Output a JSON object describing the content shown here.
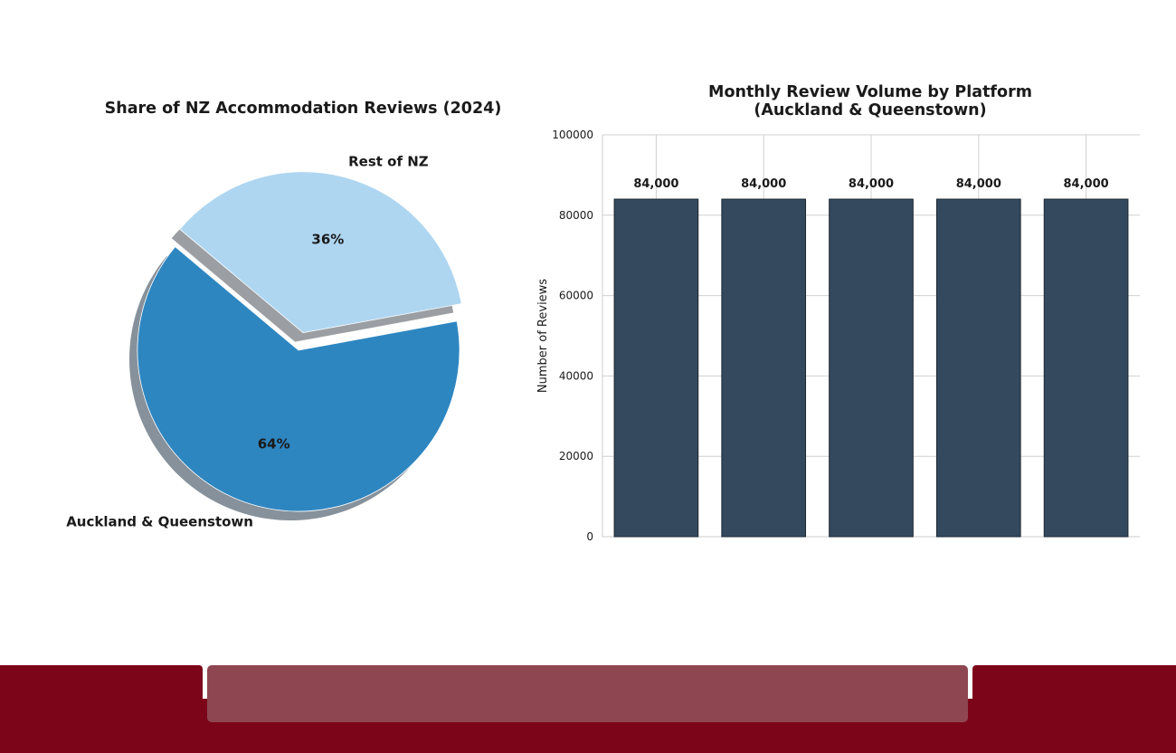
{
  "chart_data": [
    {
      "type": "pie",
      "title": "Share of NZ Accommodation Reviews (2024)",
      "slices": [
        {
          "label": "Auckland & Queenstown",
          "value": 64,
          "pct_label": "64%",
          "color": "#2e86c1"
        },
        {
          "label": "Rest of NZ",
          "value": 36,
          "pct_label": "36%",
          "color": "#aed6f1",
          "exploded": true
        }
      ],
      "shadow": true
    },
    {
      "type": "bar",
      "title": "Monthly Review Volume by Platform\n(Auckland & Queenstown)",
      "title_lines": [
        "Monthly Review Volume by Platform",
        "(Auckland & Queenstown)"
      ],
      "ylabel": "Number of Reviews",
      "ylim": [
        0,
        100000
      ],
      "yticks": [
        0,
        20000,
        40000,
        60000,
        80000,
        100000
      ],
      "values": [
        84000,
        84000,
        84000,
        84000,
        84000
      ],
      "value_labels": [
        "84,000",
        "84,000",
        "84,000",
        "84,000",
        "84,000"
      ],
      "bar_color": "#34495e",
      "grid": true
    }
  ],
  "colors": {
    "footer": "#7d0519",
    "footer_panel": "#8e4751"
  }
}
